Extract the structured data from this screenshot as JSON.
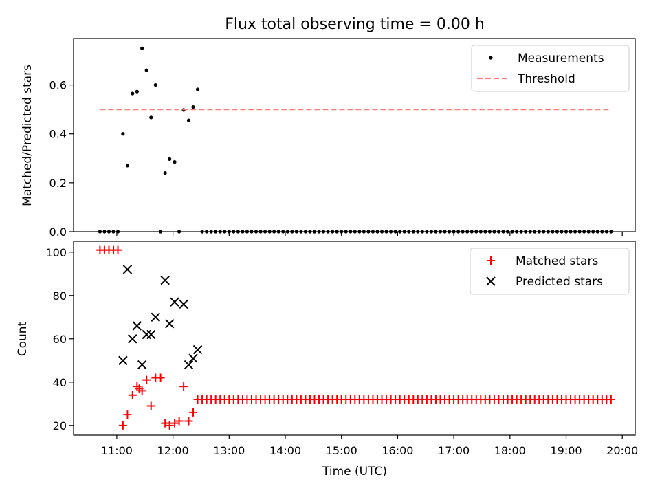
{
  "chart_data": [
    {
      "type": "scatter",
      "title": "Flux total observing time = 0.00 h",
      "xlabel": "",
      "ylabel": "Matched/Predicted stars",
      "xlim": [
        10.23,
        20.23
      ],
      "ylim": [
        0,
        0.79
      ],
      "yticks": [
        0.0,
        0.2,
        0.4,
        0.6
      ],
      "ytick_labels": [
        "0.0",
        "0.2",
        "0.4",
        "0.6"
      ],
      "legend_position": "top-right",
      "series": [
        {
          "name": "Measurements",
          "kind": "scatter",
          "color": "#000000",
          "points": [
            [
              10.7,
              0
            ],
            [
              10.78,
              0
            ],
            [
              10.86,
              0
            ],
            [
              10.94,
              0
            ],
            [
              11.02,
              0
            ],
            [
              11.11,
              0.4
            ],
            [
              11.19,
              0.27
            ],
            [
              11.28,
              0.565
            ],
            [
              11.36,
              0.573
            ],
            [
              11.45,
              0.75
            ],
            [
              11.53,
              0.66
            ],
            [
              11.61,
              0.467
            ],
            [
              11.69,
              0.6
            ],
            [
              11.78,
              0
            ],
            [
              11.86,
              0.24
            ],
            [
              11.94,
              0.297
            ],
            [
              12.03,
              0.285
            ],
            [
              12.11,
              0
            ],
            [
              12.19,
              0.498
            ],
            [
              12.28,
              0.455
            ],
            [
              12.36,
              0.51
            ],
            [
              12.44,
              0.582
            ],
            [
              12.52,
              0
            ],
            [
              12.6,
              0
            ],
            [
              12.68,
              0
            ],
            [
              12.76,
              0
            ],
            [
              12.84,
              0
            ],
            [
              12.92,
              0
            ],
            [
              13.0,
              0
            ],
            [
              13.08,
              0
            ],
            [
              13.16,
              0
            ],
            [
              13.24,
              0
            ],
            [
              13.32,
              0
            ],
            [
              13.4,
              0
            ],
            [
              13.48,
              0
            ],
            [
              13.56,
              0
            ],
            [
              13.64,
              0
            ],
            [
              13.72,
              0
            ],
            [
              13.8,
              0
            ],
            [
              13.88,
              0
            ],
            [
              13.96,
              0
            ],
            [
              14.04,
              0
            ],
            [
              14.12,
              0
            ],
            [
              14.2,
              0
            ],
            [
              14.28,
              0
            ],
            [
              14.36,
              0
            ],
            [
              14.44,
              0
            ],
            [
              14.52,
              0
            ],
            [
              14.6,
              0
            ],
            [
              14.68,
              0
            ],
            [
              14.76,
              0
            ],
            [
              14.84,
              0
            ],
            [
              14.92,
              0
            ],
            [
              15.0,
              0
            ],
            [
              15.08,
              0
            ],
            [
              15.16,
              0
            ],
            [
              15.24,
              0
            ],
            [
              15.32,
              0
            ],
            [
              15.4,
              0
            ],
            [
              15.48,
              0
            ],
            [
              15.56,
              0
            ],
            [
              15.64,
              0
            ],
            [
              15.72,
              0
            ],
            [
              15.8,
              0
            ],
            [
              15.88,
              0
            ],
            [
              15.96,
              0
            ],
            [
              16.04,
              0
            ],
            [
              16.12,
              0
            ],
            [
              16.2,
              0
            ],
            [
              16.28,
              0
            ],
            [
              16.36,
              0
            ],
            [
              16.44,
              0
            ],
            [
              16.52,
              0
            ],
            [
              16.6,
              0
            ],
            [
              16.68,
              0
            ],
            [
              16.76,
              0
            ],
            [
              16.84,
              0
            ],
            [
              16.92,
              0
            ],
            [
              17.0,
              0
            ],
            [
              17.08,
              0
            ],
            [
              17.16,
              0
            ],
            [
              17.24,
              0
            ],
            [
              17.32,
              0
            ],
            [
              17.4,
              0
            ],
            [
              17.48,
              0
            ],
            [
              17.56,
              0
            ],
            [
              17.64,
              0
            ],
            [
              17.72,
              0
            ],
            [
              17.8,
              0
            ],
            [
              17.88,
              0
            ],
            [
              17.96,
              0
            ],
            [
              18.04,
              0
            ],
            [
              18.12,
              0
            ],
            [
              18.2,
              0
            ],
            [
              18.28,
              0
            ],
            [
              18.36,
              0
            ],
            [
              18.44,
              0
            ],
            [
              18.52,
              0
            ],
            [
              18.6,
              0
            ],
            [
              18.68,
              0
            ],
            [
              18.76,
              0
            ],
            [
              18.84,
              0
            ],
            [
              18.92,
              0
            ],
            [
              19.0,
              0
            ],
            [
              19.08,
              0
            ],
            [
              19.16,
              0
            ],
            [
              19.24,
              0
            ],
            [
              19.32,
              0
            ],
            [
              19.4,
              0
            ],
            [
              19.48,
              0
            ],
            [
              19.56,
              0
            ],
            [
              19.64,
              0
            ],
            [
              19.72,
              0
            ],
            [
              19.8,
              0
            ]
          ]
        },
        {
          "name": "Threshold",
          "kind": "dashed-line",
          "color": "#ff7f7f",
          "points": [
            [
              10.7,
              0.5
            ],
            [
              19.8,
              0.5
            ]
          ]
        }
      ]
    },
    {
      "type": "scatter",
      "title": "",
      "xlabel": "Time (UTC)",
      "ylabel": "Count",
      "xlim": [
        10.23,
        20.23
      ],
      "ylim": [
        15.5,
        105
      ],
      "yticks": [
        20,
        40,
        60,
        80,
        100
      ],
      "ytick_labels": [
        "20",
        "40",
        "60",
        "80",
        "100"
      ],
      "xticks": [
        11,
        12,
        13,
        14,
        15,
        16,
        17,
        18,
        19,
        20
      ],
      "xtick_labels": [
        "11:00",
        "12:00",
        "13:00",
        "14:00",
        "15:00",
        "16:00",
        "17:00",
        "18:00",
        "19:00",
        "20:00"
      ],
      "legend_position": "top-right",
      "series": [
        {
          "name": "Matched stars",
          "kind": "plus",
          "color": "#ff0000",
          "points": [
            [
              10.7,
              101
            ],
            [
              10.78,
              101
            ],
            [
              10.86,
              101
            ],
            [
              10.94,
              101
            ],
            [
              11.02,
              101
            ],
            [
              11.11,
              20
            ],
            [
              11.19,
              25
            ],
            [
              11.28,
              34
            ],
            [
              11.36,
              38
            ],
            [
              11.4,
              37
            ],
            [
              11.45,
              36
            ],
            [
              11.53,
              41
            ],
            [
              11.61,
              29
            ],
            [
              11.69,
              42
            ],
            [
              11.78,
              42
            ],
            [
              11.86,
              21
            ],
            [
              11.94,
              20
            ],
            [
              12.03,
              21
            ],
            [
              12.11,
              22
            ],
            [
              12.19,
              38
            ],
            [
              12.28,
              22
            ],
            [
              12.36,
              26
            ],
            [
              12.44,
              32
            ],
            [
              12.52,
              32
            ],
            [
              12.6,
              32
            ],
            [
              12.68,
              32
            ],
            [
              12.76,
              32
            ],
            [
              12.84,
              32
            ],
            [
              12.92,
              32
            ],
            [
              13.0,
              32
            ],
            [
              13.08,
              32
            ],
            [
              13.16,
              32
            ],
            [
              13.24,
              32
            ],
            [
              13.32,
              32
            ],
            [
              13.4,
              32
            ],
            [
              13.48,
              32
            ],
            [
              13.56,
              32
            ],
            [
              13.64,
              32
            ],
            [
              13.72,
              32
            ],
            [
              13.8,
              32
            ],
            [
              13.88,
              32
            ],
            [
              13.96,
              32
            ],
            [
              14.04,
              32
            ],
            [
              14.12,
              32
            ],
            [
              14.2,
              32
            ],
            [
              14.28,
              32
            ],
            [
              14.36,
              32
            ],
            [
              14.44,
              32
            ],
            [
              14.52,
              32
            ],
            [
              14.6,
              32
            ],
            [
              14.68,
              32
            ],
            [
              14.76,
              32
            ],
            [
              14.84,
              32
            ],
            [
              14.92,
              32
            ],
            [
              15.0,
              32
            ],
            [
              15.08,
              32
            ],
            [
              15.16,
              32
            ],
            [
              15.24,
              32
            ],
            [
              15.32,
              32
            ],
            [
              15.4,
              32
            ],
            [
              15.48,
              32
            ],
            [
              15.56,
              32
            ],
            [
              15.64,
              32
            ],
            [
              15.72,
              32
            ],
            [
              15.8,
              32
            ],
            [
              15.88,
              32
            ],
            [
              15.96,
              32
            ],
            [
              16.04,
              32
            ],
            [
              16.12,
              32
            ],
            [
              16.2,
              32
            ],
            [
              16.28,
              32
            ],
            [
              16.36,
              32
            ],
            [
              16.44,
              32
            ],
            [
              16.52,
              32
            ],
            [
              16.6,
              32
            ],
            [
              16.68,
              32
            ],
            [
              16.76,
              32
            ],
            [
              16.84,
              32
            ],
            [
              16.92,
              32
            ],
            [
              17.0,
              32
            ],
            [
              17.08,
              32
            ],
            [
              17.16,
              32
            ],
            [
              17.24,
              32
            ],
            [
              17.32,
              32
            ],
            [
              17.4,
              32
            ],
            [
              17.48,
              32
            ],
            [
              17.56,
              32
            ],
            [
              17.64,
              32
            ],
            [
              17.72,
              32
            ],
            [
              17.8,
              32
            ],
            [
              17.88,
              32
            ],
            [
              17.96,
              32
            ],
            [
              18.04,
              32
            ],
            [
              18.12,
              32
            ],
            [
              18.2,
              32
            ],
            [
              18.28,
              32
            ],
            [
              18.36,
              32
            ],
            [
              18.44,
              32
            ],
            [
              18.52,
              32
            ],
            [
              18.6,
              32
            ],
            [
              18.68,
              32
            ],
            [
              18.76,
              32
            ],
            [
              18.84,
              32
            ],
            [
              18.92,
              32
            ],
            [
              19.0,
              32
            ],
            [
              19.08,
              32
            ],
            [
              19.16,
              32
            ],
            [
              19.24,
              32
            ],
            [
              19.32,
              32
            ],
            [
              19.4,
              32
            ],
            [
              19.48,
              32
            ],
            [
              19.56,
              32
            ],
            [
              19.64,
              32
            ],
            [
              19.72,
              32
            ],
            [
              19.8,
              32
            ]
          ]
        },
        {
          "name": "Predicted stars",
          "kind": "x",
          "color": "#000000",
          "points": [
            [
              11.11,
              50
            ],
            [
              11.19,
              92
            ],
            [
              11.28,
              60
            ],
            [
              11.36,
              66
            ],
            [
              11.45,
              48
            ],
            [
              11.53,
              62
            ],
            [
              11.61,
              62
            ],
            [
              11.69,
              70
            ],
            [
              11.86,
              87
            ],
            [
              11.94,
              67
            ],
            [
              12.03,
              77
            ],
            [
              12.19,
              76
            ],
            [
              12.28,
              48
            ],
            [
              12.36,
              51
            ],
            [
              12.44,
              55
            ]
          ]
        }
      ]
    }
  ]
}
